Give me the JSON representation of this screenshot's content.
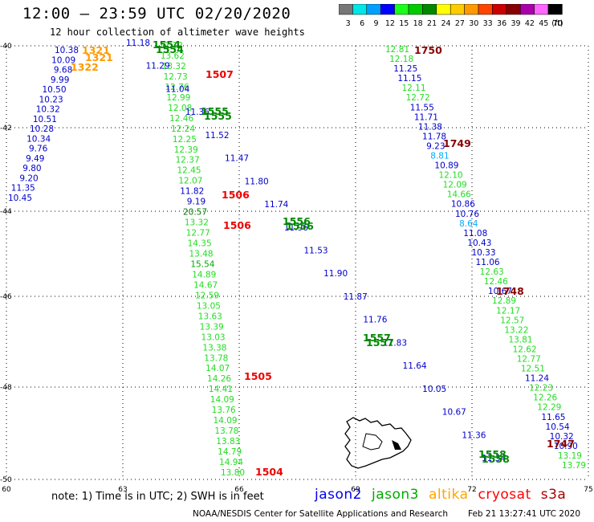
{
  "header": {
    "title": "12:00 – 23:59 UTC 02/20/2020",
    "subtitle": "12 hour collection of altimeter wave heights"
  },
  "colorbar": {
    "unit_label": "(ft)",
    "ticks": [
      "3",
      "6",
      "9",
      "12",
      "15",
      "18",
      "21",
      "24",
      "27",
      "30",
      "33",
      "36",
      "39",
      "42",
      "45",
      "70"
    ],
    "colors": [
      "#777777",
      "#00e5e5",
      "#00a0ff",
      "#0000ff",
      "#1aff1a",
      "#00cc00",
      "#008800",
      "#ffff00",
      "#ffcc00",
      "#ff9900",
      "#ff4400",
      "#cc0000",
      "#880000",
      "#aa00aa",
      "#ff66ff",
      "#000000"
    ]
  },
  "axes": {
    "lon_labels": [
      "60",
      "63",
      "66",
      "69",
      "72",
      "75"
    ],
    "lat_labels": [
      "-40",
      "-42",
      "-44",
      "-46",
      "-48",
      "-50"
    ]
  },
  "tracks": [
    {
      "name": "track-1321",
      "pass_labels": [
        "1321",
        "1321",
        "1322"
      ],
      "pass_color": "#ff9900",
      "values": [
        "10.38",
        "10.09",
        "9.68",
        "9.99",
        "10.50",
        "10.23",
        "10.32",
        "10.51",
        "10.28",
        "10.34",
        "9.76",
        "9.49",
        "9.80",
        "9.20",
        "11.35",
        "10.45"
      ]
    },
    {
      "name": "track-1507",
      "pass_labels": [
        "1507",
        "1506",
        "1506",
        "1505",
        "1504"
      ],
      "pass_color": "#ee0000",
      "values": [
        "12.12",
        "13.62",
        "13.32",
        "12.73",
        "12.76",
        "12.99",
        "12.08",
        "12.46",
        "12.24",
        "12.25",
        "12.39",
        "12.37",
        "12.45",
        "12.07",
        "11.82",
        "9.19",
        "20.57",
        "13.32",
        "12.77",
        "14.35",
        "13.48",
        "15.54",
        "14.89",
        "14.67",
        "12.59",
        "13.05",
        "13.63",
        "13.39",
        "13.03",
        "13.38",
        "13.78",
        "14.07",
        "14.26",
        "14.41",
        "14.09",
        "13.76",
        "14.09",
        "13.78",
        "13.83",
        "14.79",
        "14.94",
        "13.80"
      ]
    },
    {
      "name": "track-1554",
      "pass_labels": [
        "1554",
        "1554",
        "1555",
        "1555",
        "1556",
        "1556",
        "1557",
        "1557",
        "1558",
        "1558"
      ],
      "pass_color": "#008800",
      "values": [
        "11.18",
        "11.29",
        "11.04",
        "11.36",
        "11.52",
        "11.47",
        "11.80",
        "11.74",
        "11.96",
        "11.53",
        "11.90",
        "11.87",
        "11.76",
        "11.83",
        "11.64",
        "10.05",
        "10.67",
        "11.36",
        "11.34"
      ]
    },
    {
      "name": "track-1750",
      "pass_labels": [
        "1750",
        "1749",
        "1748",
        "1747"
      ],
      "pass_color": "#880000",
      "values": [
        "12.81",
        "12.18",
        "11.25",
        "11.15",
        "12.11",
        "12.72",
        "11.55",
        "11.71",
        "11.38",
        "11.78",
        "9.23",
        "8.81",
        "10.89",
        "12.10",
        "12.09",
        "14.66",
        "10.86",
        "10.76",
        "8.64",
        "11.08",
        "10.43",
        "10.33",
        "11.06",
        "12.63",
        "12.46",
        "10.67",
        "12.89",
        "12.17",
        "12.57",
        "13.22",
        "13.81",
        "12.62",
        "12.77",
        "12.51",
        "11.24",
        "12.23",
        "12.26",
        "12.29",
        "11.65",
        "10.54",
        "10.32",
        "10.90",
        "13.19",
        "13.79"
      ]
    }
  ],
  "footer": {
    "note": "note: 1) Time is in UTC; 2) SWH is in feet",
    "legend": [
      {
        "label": "jason2",
        "color": "#0000ee"
      },
      {
        "label": "jason3",
        "color": "#00aa00"
      },
      {
        "label": "altika",
        "color": "#ffa500"
      },
      {
        "label": "cryosat",
        "color": "#ff0000"
      },
      {
        "label": "s3a",
        "color": "#aa0000"
      }
    ],
    "credit": "NOAA/NESDIS Center for Satellite Applications and Research",
    "timestamp": "Feb 21 13:27:41 UTC 2020"
  }
}
